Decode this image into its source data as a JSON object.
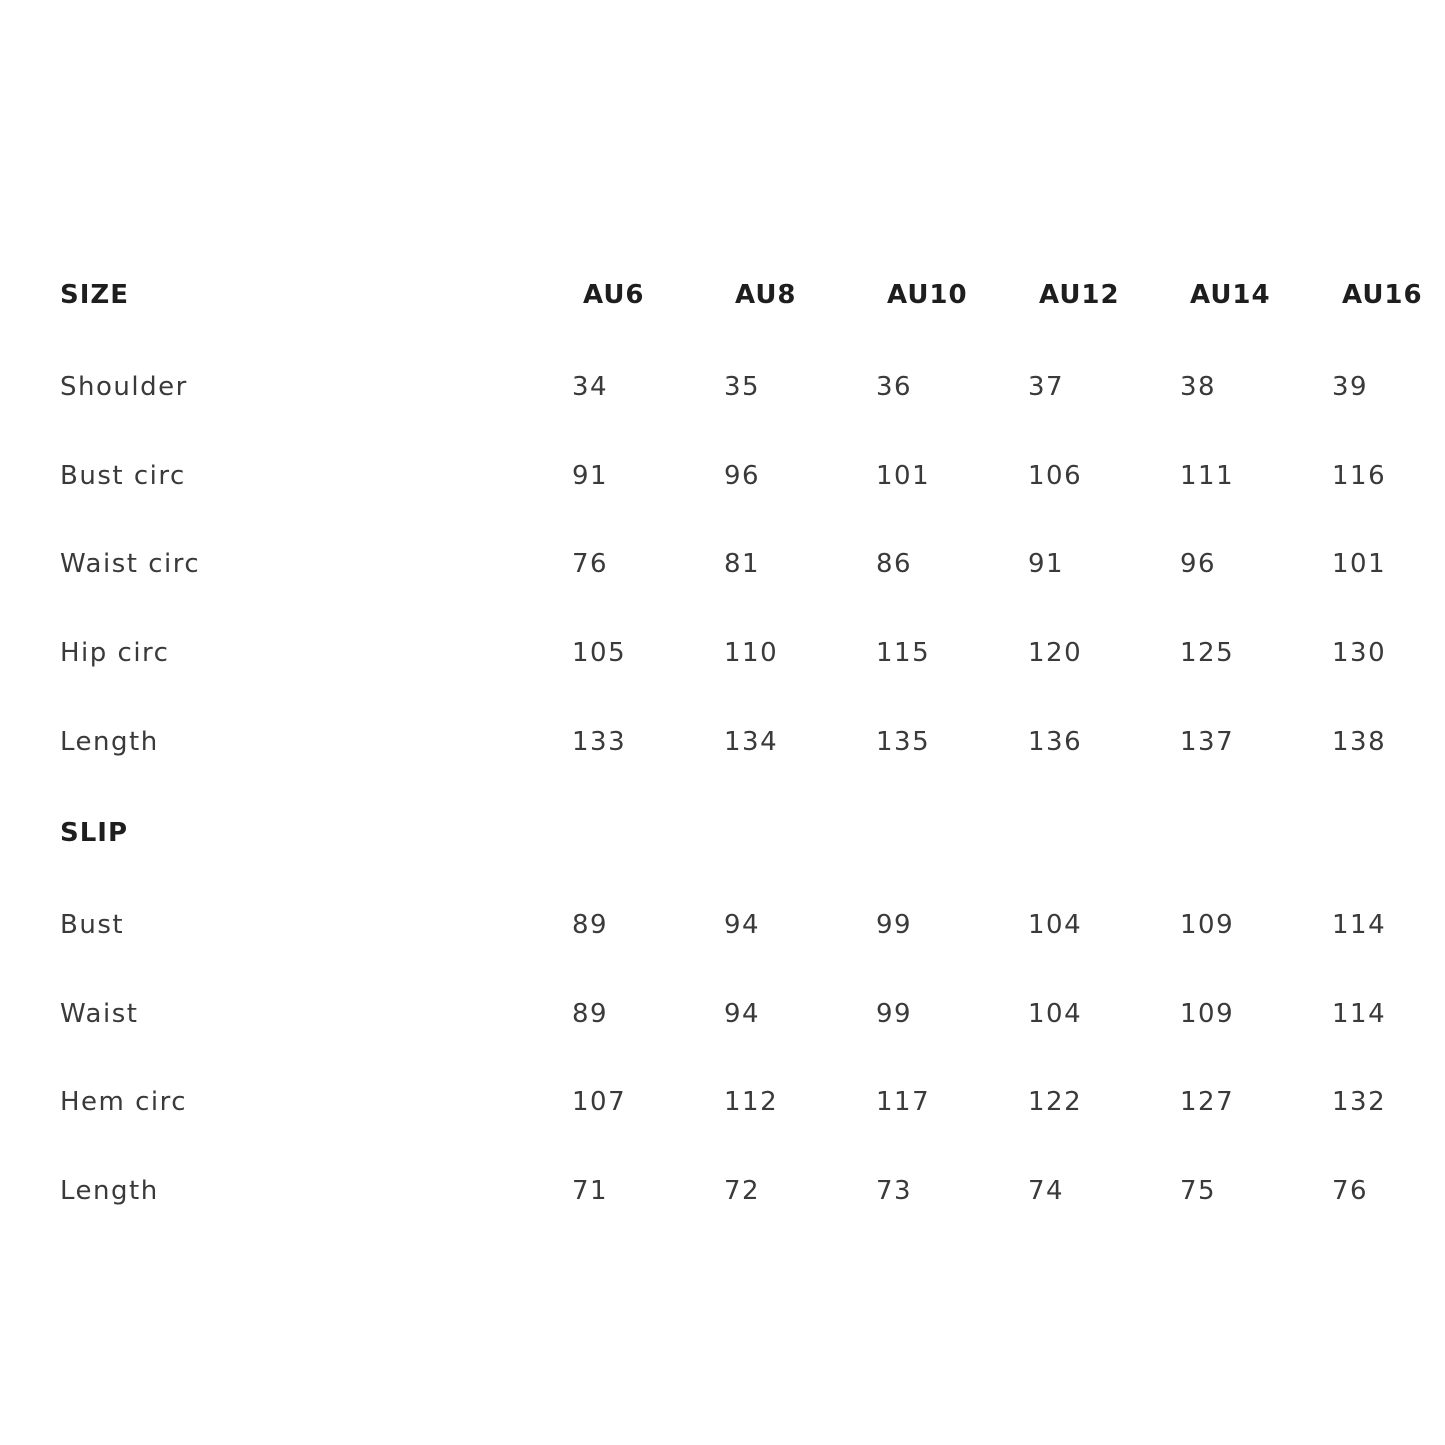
{
  "size_chart": {
    "header": {
      "label": "SIZE",
      "sizes": [
        "AU6",
        "AU8",
        "AU10",
        "AU12",
        "AU14",
        "AU16"
      ]
    },
    "dress_rows": [
      {
        "label": "Shoulder",
        "values": [
          "34",
          "35",
          "36",
          "37",
          "38",
          "39"
        ]
      },
      {
        "label": "Bust circ",
        "values": [
          "91",
          "96",
          "101",
          "106",
          "111",
          "116"
        ]
      },
      {
        "label": "Waist circ",
        "values": [
          "76",
          "81",
          "86",
          "91",
          "96",
          "101"
        ]
      },
      {
        "label": "Hip circ",
        "values": [
          "105",
          "110",
          "115",
          "120",
          "125",
          "130"
        ]
      },
      {
        "label": "Length",
        "values": [
          "133",
          "134",
          "135",
          "136",
          "137",
          "138"
        ]
      }
    ],
    "slip_heading": "SLIP",
    "slip_rows": [
      {
        "label": "Bust",
        "values": [
          "89",
          "94",
          "99",
          "104",
          "109",
          "114"
        ]
      },
      {
        "label": "Waist",
        "values": [
          "89",
          "94",
          "99",
          "104",
          "109",
          "114"
        ]
      },
      {
        "label": "Hem circ",
        "values": [
          "107",
          "112",
          "117",
          "122",
          "127",
          "132"
        ]
      },
      {
        "label": "Length",
        "values": [
          "71",
          "72",
          "73",
          "74",
          "75",
          "76"
        ]
      }
    ]
  }
}
